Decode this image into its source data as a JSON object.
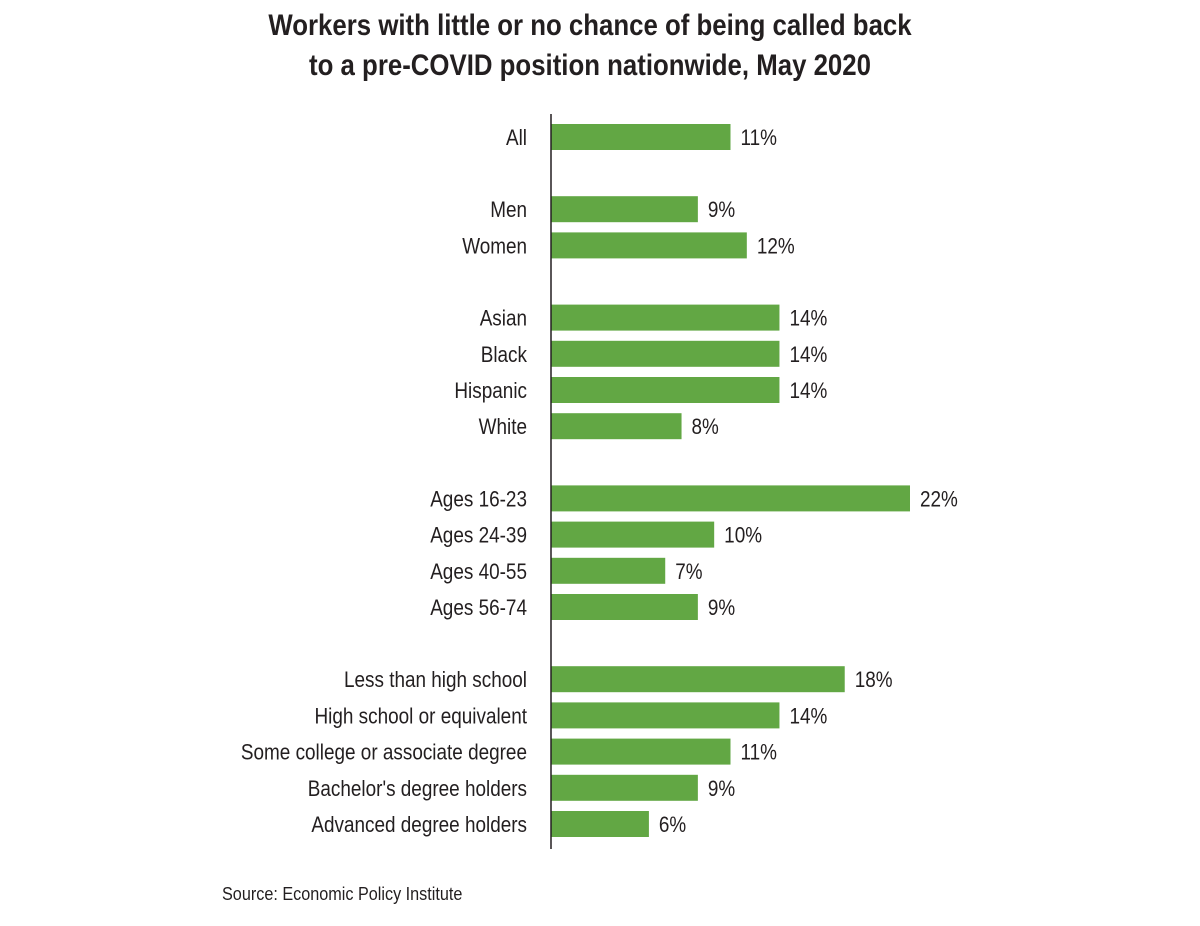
{
  "chart_data": {
    "type": "bar",
    "orientation": "horizontal",
    "title_lines": [
      "Workers with little or no chance of being called back",
      "to a pre-COVID position nationwide, May 2020"
    ],
    "groups": [
      {
        "categories": [
          "All"
        ],
        "values": [
          11
        ],
        "labels": [
          "11%"
        ]
      },
      {
        "categories": [
          "Men",
          "Women"
        ],
        "values": [
          9,
          12
        ],
        "labels": [
          "9%",
          "12%"
        ]
      },
      {
        "categories": [
          "Asian",
          "Black",
          "Hispanic",
          "White"
        ],
        "values": [
          14,
          14,
          14,
          8
        ],
        "labels": [
          "14%",
          "14%",
          "14%",
          "8%"
        ]
      },
      {
        "categories": [
          "Ages 16-23",
          "Ages 24-39",
          "Ages 40-55",
          "Ages 56-74"
        ],
        "values": [
          22,
          10,
          7,
          9
        ],
        "labels": [
          "22%",
          "10%",
          "7%",
          "9%"
        ]
      },
      {
        "categories": [
          "Less than high school",
          "High school or equivalent",
          "Some college or associate degree",
          "Bachelor's degree holders",
          "Advanced degree holders"
        ],
        "values": [
          18,
          14,
          11,
          9,
          6
        ],
        "labels": [
          "18%",
          "14%",
          "11%",
          "9%",
          "6%"
        ]
      }
    ],
    "unit": "%",
    "xlim": [
      0,
      22
    ],
    "grid": false,
    "bar_color": "#62a744",
    "axis_color": "#231f20"
  },
  "source": "Source: Economic Policy Institute"
}
